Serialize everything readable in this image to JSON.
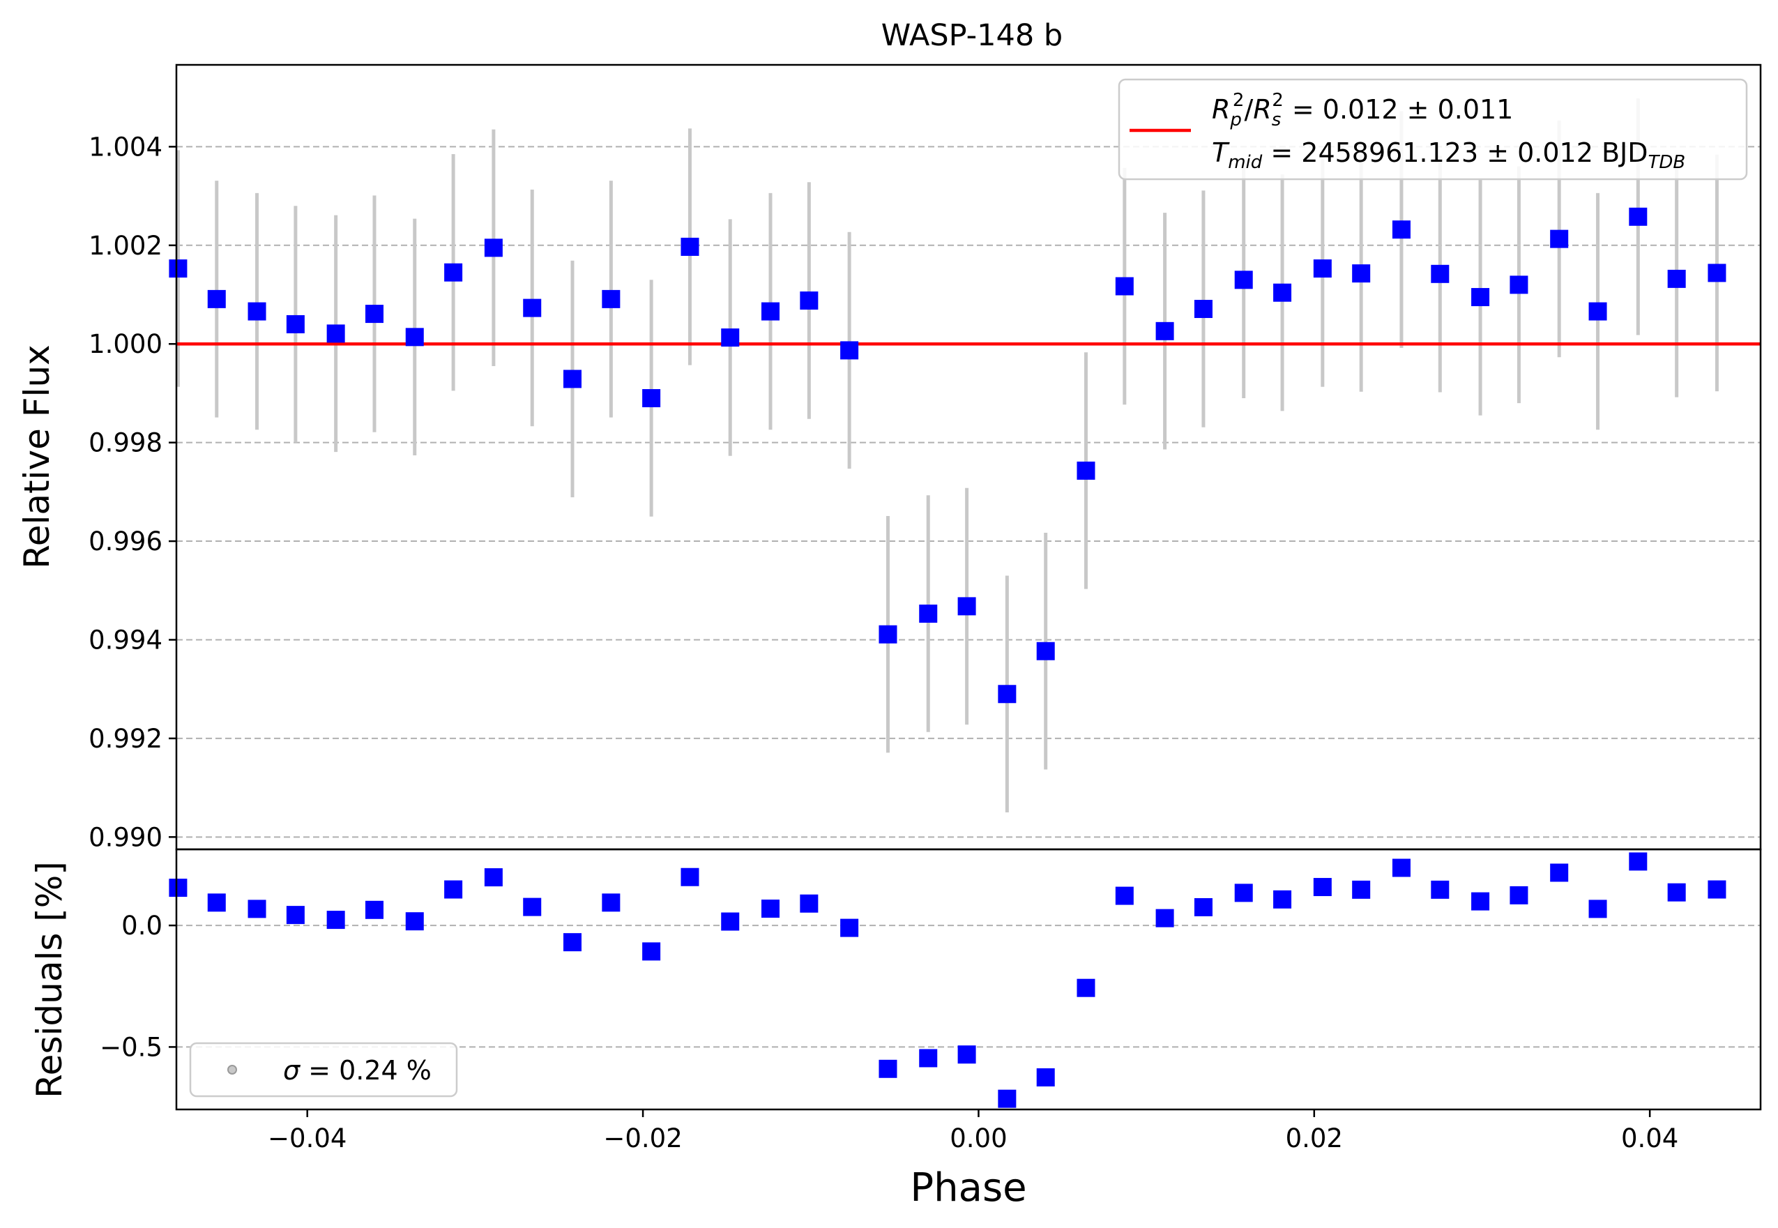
{
  "chart_data": [
    {
      "type": "scatter",
      "panel": "top",
      "title": "WASP-148 b",
      "xlabel": "",
      "ylabel": "Relative Flux",
      "xlim": [
        -0.0478,
        0.0466
      ],
      "ylim": [
        0.98975,
        1.00566
      ],
      "yticks": [
        0.99,
        0.992,
        0.994,
        0.996,
        0.998,
        1.0,
        1.002,
        1.004
      ],
      "ytick_labels": [
        "0.990",
        "0.992",
        "0.994",
        "0.996",
        "0.998",
        "1.000",
        "1.002",
        "1.004"
      ],
      "grid": "y, dashed",
      "colors": {
        "points": "#0000ff",
        "errorbars": "#c8c8c8",
        "model": "#ff0000",
        "grid": "#b0b0b0"
      },
      "series": [
        {
          "marker": "square",
          "x": [
            -0.0477,
            -0.0454,
            -0.043,
            -0.0407,
            -0.0383,
            -0.036,
            -0.0336,
            -0.0313,
            -0.0289,
            -0.0266,
            -0.0242,
            -0.0219,
            -0.0195,
            -0.0172,
            -0.0148,
            -0.0124,
            -0.0101,
            -0.0077,
            -0.0054,
            -0.003,
            -0.0007,
            0.0017,
            0.004,
            0.0064,
            0.0087,
            0.0111,
            0.0134,
            0.0158,
            0.0181,
            0.0205,
            0.0228,
            0.0252,
            0.0275,
            0.0299,
            0.0322,
            0.0346,
            0.0369,
            0.0393,
            0.0416,
            0.044
          ],
          "y": [
            1.00153,
            1.00091,
            1.00066,
            1.0004,
            1.00021,
            1.00061,
            1.00014,
            1.00145,
            1.00195,
            1.00073,
            0.99929,
            1.00091,
            0.9989,
            1.00197,
            1.00013,
            1.00066,
            1.00088,
            0.99987,
            0.99411,
            0.99453,
            0.99468,
            0.9929,
            0.99377,
            0.99743,
            1.00117,
            1.00026,
            1.00071,
            1.0013,
            1.00104,
            1.00153,
            1.00143,
            1.00232,
            1.00142,
            1.00095,
            1.0012,
            1.00213,
            1.00066,
            1.00258,
            1.00132,
            1.00144
          ],
          "yerr": [
            0.0024,
            0.0024,
            0.0024,
            0.0024,
            0.0024,
            0.0024,
            0.0024,
            0.0024,
            0.0024,
            0.0024,
            0.0024,
            0.0024,
            0.0024,
            0.0024,
            0.0024,
            0.0024,
            0.0024,
            0.0024,
            0.0024,
            0.0024,
            0.0024,
            0.0024,
            0.0024,
            0.0024,
            0.0024,
            0.0024,
            0.0024,
            0.0024,
            0.0024,
            0.0024,
            0.0024,
            0.0024,
            0.0024,
            0.0024,
            0.0024,
            0.0024,
            0.0024,
            0.0024,
            0.0024,
            0.0024
          ]
        },
        {
          "type": "line",
          "x": [
            -0.0478,
            0.0466
          ],
          "y": [
            1.0,
            1.0
          ]
        }
      ],
      "legend": {
        "placement": "top-right",
        "line1_sym": "R",
        "line1_sub1": "p",
        "line1_sup1": "2",
        "line1_slash": "/",
        "line1_sub2": "s",
        "line1_sup2": "2",
        "line1_value": " = 0.012 ± 0.011",
        "line2_sym": "T",
        "line2_sub": "mid",
        "line2_value": " = 2458961.123 ± 0.012 BJD",
        "line2_value_sub": "TDB"
      }
    },
    {
      "type": "scatter",
      "panel": "bottom",
      "xlabel": "Phase",
      "ylabel": "Residuals [%]",
      "xlim": [
        -0.0478,
        0.0466
      ],
      "ylim": [
        -0.757,
        0.313
      ],
      "xticks": [
        -0.04,
        -0.02,
        0.0,
        0.02,
        0.04
      ],
      "xtick_labels": [
        "−0.04",
        "−0.02",
        "0.00",
        "0.02",
        "0.04"
      ],
      "yticks": [
        -0.5,
        0.0
      ],
      "ytick_labels": [
        "−0.5",
        "0.0"
      ],
      "grid": "y, dashed",
      "series": [
        {
          "marker": "square",
          "x": [
            -0.0477,
            -0.0454,
            -0.043,
            -0.0407,
            -0.0383,
            -0.036,
            -0.0336,
            -0.0313,
            -0.0289,
            -0.0266,
            -0.0242,
            -0.0219,
            -0.0195,
            -0.0172,
            -0.0148,
            -0.0124,
            -0.0101,
            -0.0077,
            -0.0054,
            -0.003,
            -0.0007,
            0.0017,
            0.004,
            0.0064,
            0.0087,
            0.0111,
            0.0134,
            0.0158,
            0.0181,
            0.0205,
            0.0228,
            0.0252,
            0.0275,
            0.0299,
            0.0322,
            0.0346,
            0.0369,
            0.0393,
            0.0416,
            0.044
          ],
          "y": [
            0.155,
            0.094,
            0.068,
            0.043,
            0.023,
            0.064,
            0.017,
            0.148,
            0.198,
            0.076,
            -0.069,
            0.094,
            -0.107,
            0.199,
            0.016,
            0.069,
            0.09,
            -0.01,
            -0.59,
            -0.546,
            -0.531,
            -0.713,
            -0.625,
            -0.257,
            0.122,
            0.03,
            0.075,
            0.134,
            0.107,
            0.158,
            0.147,
            0.237,
            0.147,
            0.099,
            0.124,
            0.217,
            0.068,
            0.263,
            0.136,
            0.148
          ]
        }
      ],
      "legend": {
        "placement": "bottom-left",
        "sym": "σ",
        "text": " = 0.24 %"
      }
    }
  ]
}
